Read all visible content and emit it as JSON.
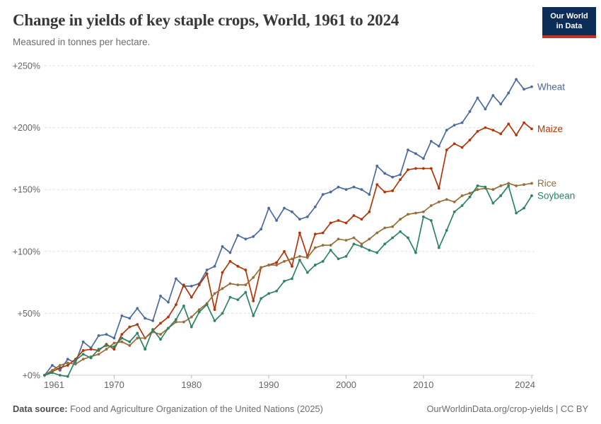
{
  "header": {
    "title": "Change in yields of key staple crops, World, 1961 to 2024",
    "subtitle": "Measured in tonnes per hectare."
  },
  "logo": {
    "line1": "Our World",
    "line2": "in Data",
    "bg_color": "#0d2d59",
    "stripe_color": "#c5332b"
  },
  "footer": {
    "source_label": "Data source:",
    "source_text": "Food and Agriculture Organization of the United Nations (2025)",
    "right": "OurWorldinData.org/crop-yields | CC BY"
  },
  "chart_data": {
    "type": "line",
    "title": "Change in yields of key staple crops, World, 1961 to 2024",
    "xlabel": "",
    "ylabel": "",
    "ylim": [
      0,
      250
    ],
    "yticks": [
      0,
      50,
      100,
      150,
      200,
      250
    ],
    "ytick_labels": [
      "+0%",
      "+50%",
      "+100%",
      "+150%",
      "+200%",
      "+250%"
    ],
    "xticks": [
      1961,
      1970,
      1980,
      1990,
      2000,
      2010,
      2024
    ],
    "grid": "horizontal-dashed",
    "legend_position": "right-of-line-ends",
    "x": [
      1961,
      1962,
      1963,
      1964,
      1965,
      1966,
      1967,
      1968,
      1969,
      1970,
      1971,
      1972,
      1973,
      1974,
      1975,
      1976,
      1977,
      1978,
      1979,
      1980,
      1981,
      1982,
      1983,
      1984,
      1985,
      1986,
      1987,
      1988,
      1989,
      1990,
      1991,
      1992,
      1993,
      1994,
      1995,
      1996,
      1997,
      1998,
      1999,
      2000,
      2001,
      2002,
      2003,
      2004,
      2005,
      2006,
      2007,
      2008,
      2009,
      2010,
      2011,
      2012,
      2013,
      2014,
      2015,
      2016,
      2017,
      2018,
      2019,
      2020,
      2021,
      2022,
      2023,
      2024
    ],
    "series": [
      {
        "name": "Wheat",
        "color": "#4C6A9C",
        "values": [
          0,
          8,
          4,
          13,
          10,
          27,
          22,
          32,
          33,
          30,
          48,
          46,
          54,
          46,
          44,
          64,
          59,
          78,
          72,
          72,
          74,
          85,
          88,
          104,
          99,
          113,
          110,
          112,
          118,
          135,
          125,
          135,
          132,
          126,
          128,
          136,
          146,
          148,
          152,
          150,
          152,
          150,
          146,
          169,
          163,
          160,
          162,
          182,
          179,
          175,
          189,
          185,
          198,
          202,
          204,
          213,
          224,
          215,
          226,
          219,
          228,
          239,
          231,
          233
        ]
      },
      {
        "name": "Maize",
        "color": "#B13507",
        "values": [
          0,
          3,
          6,
          8,
          13,
          20,
          21,
          20,
          25,
          21,
          33,
          39,
          41,
          30,
          36,
          42,
          47,
          57,
          73,
          63,
          73,
          82,
          53,
          83,
          92,
          88,
          85,
          60,
          87,
          89,
          91,
          100,
          88,
          115,
          96,
          114,
          115,
          123,
          125,
          123,
          129,
          126,
          132,
          154,
          148,
          149,
          158,
          166,
          167,
          167,
          167,
          151,
          182,
          187,
          184,
          190,
          197,
          200,
          198,
          195,
          203,
          194,
          204,
          199
        ]
      },
      {
        "name": "Rice",
        "color": "#996D39",
        "values": [
          0,
          4,
          8,
          10,
          9,
          13,
          15,
          17,
          21,
          26,
          27,
          24,
          30,
          30,
          35,
          33,
          38,
          43,
          43,
          47,
          53,
          58,
          66,
          70,
          74,
          73,
          73,
          79,
          87,
          89,
          89,
          92,
          94,
          96,
          95,
          103,
          105,
          105,
          110,
          109,
          111,
          106,
          110,
          115,
          119,
          120,
          126,
          130,
          131,
          132,
          137,
          140,
          142,
          140,
          145,
          147,
          150,
          151,
          150,
          153,
          155,
          153,
          154,
          155
        ]
      },
      {
        "name": "Soybean",
        "color": "#2C8465",
        "values": [
          0,
          2,
          0,
          -1,
          12,
          17,
          14,
          21,
          24,
          23,
          30,
          27,
          34,
          21,
          37,
          29,
          38,
          45,
          56,
          39,
          51,
          57,
          44,
          50,
          63,
          61,
          67,
          48,
          62,
          66,
          68,
          76,
          78,
          93,
          83,
          89,
          92,
          101,
          94,
          96,
          106,
          104,
          101,
          99,
          106,
          111,
          116,
          111,
          99,
          128,
          125,
          103,
          117,
          132,
          137,
          144,
          153,
          152,
          139,
          145,
          153,
          131,
          135,
          145
        ]
      }
    ]
  }
}
